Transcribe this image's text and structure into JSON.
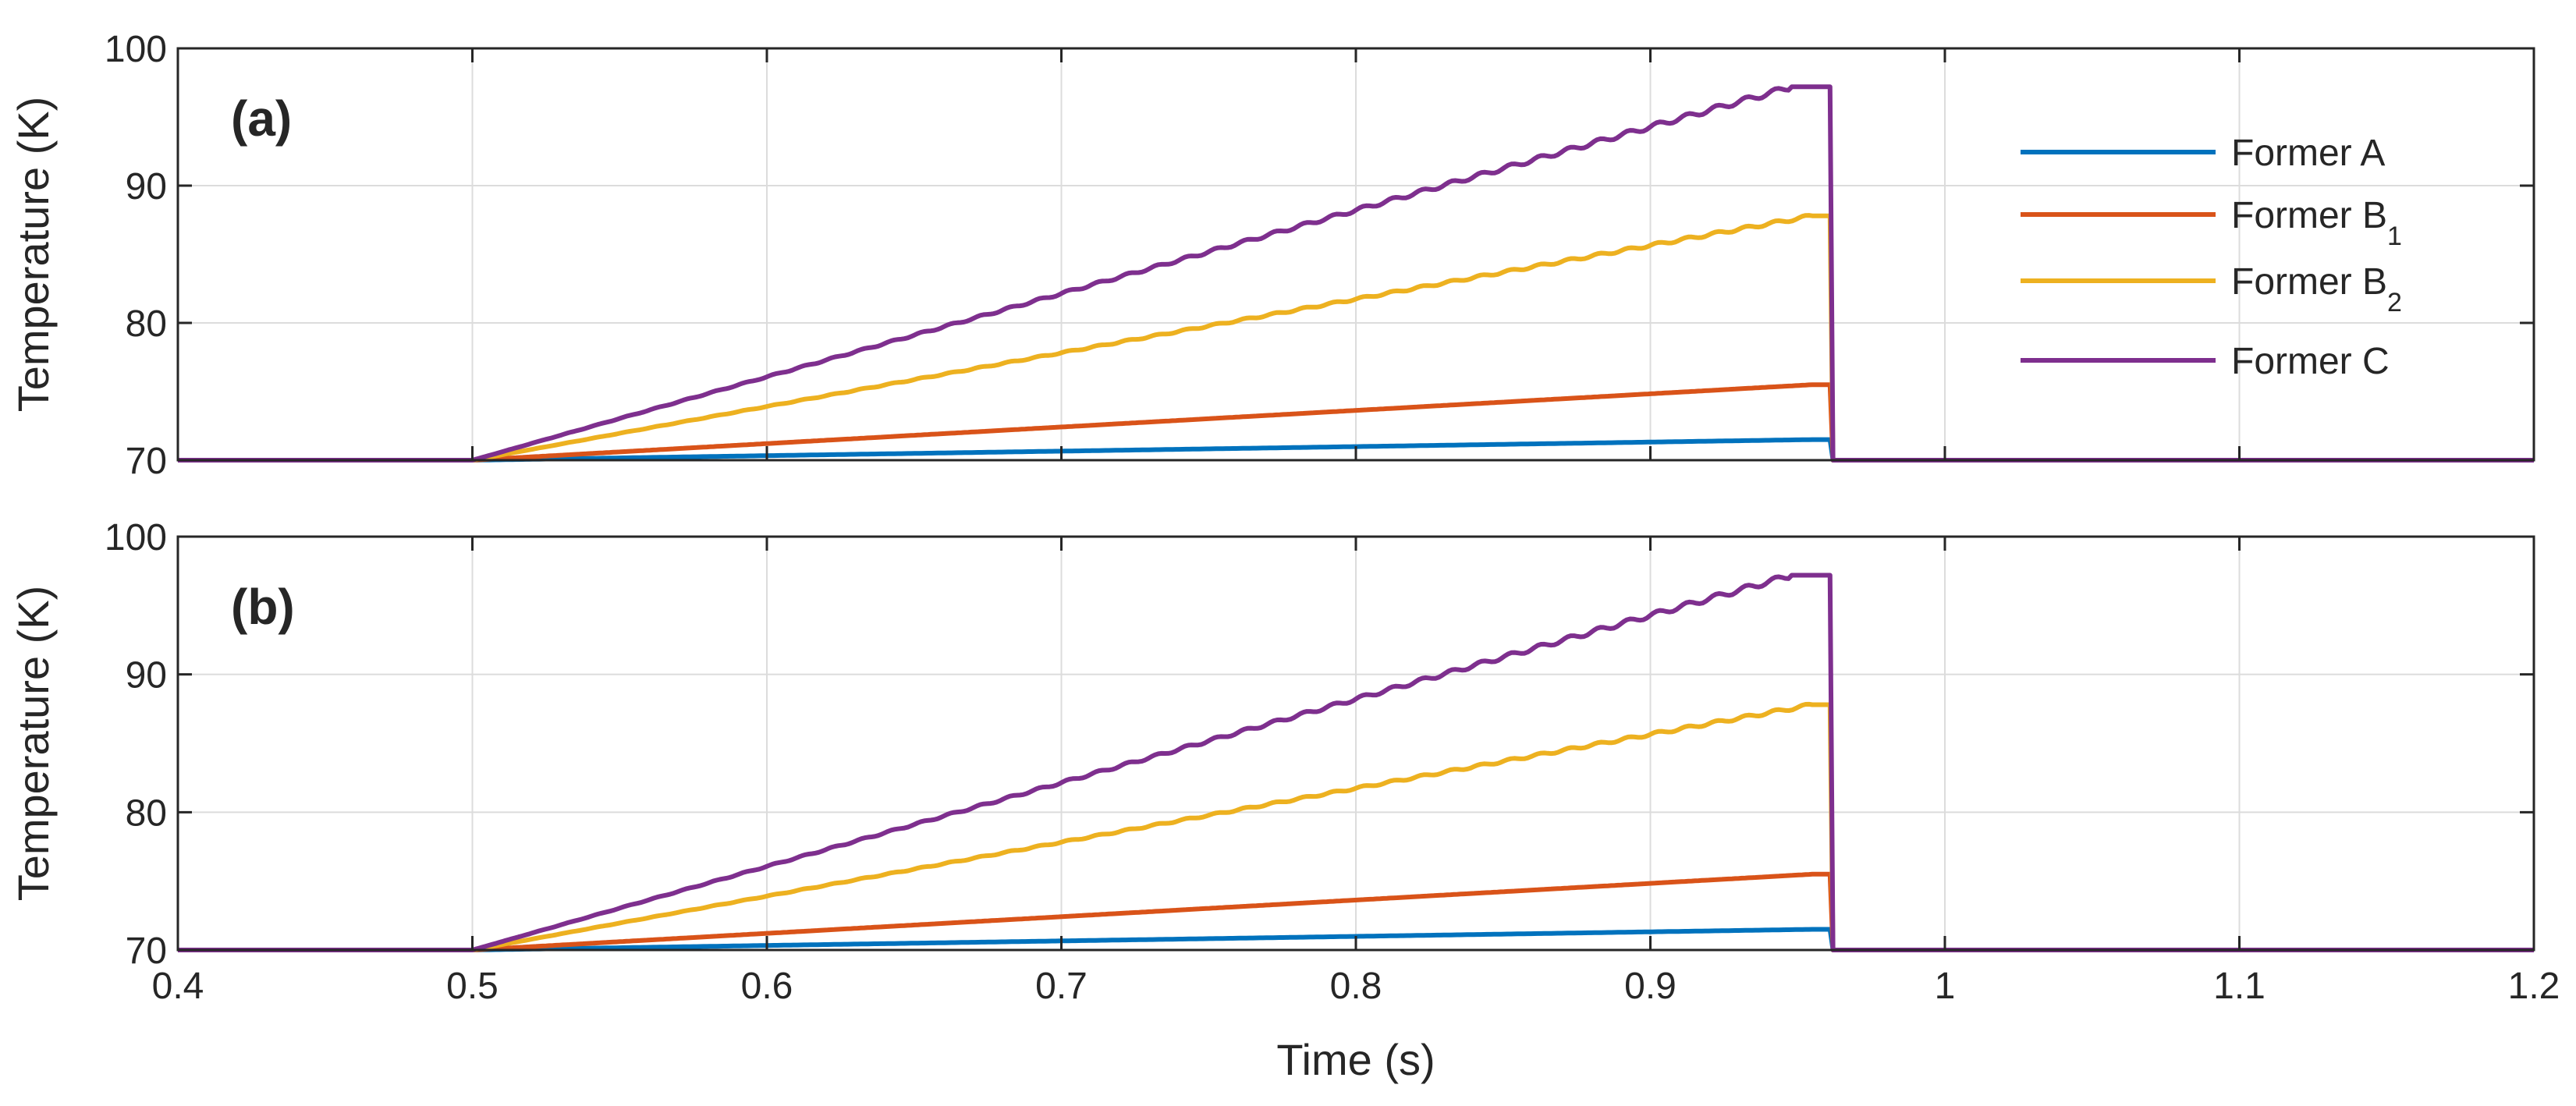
{
  "chart_data": {
    "type": "line",
    "xlabel": "Time (s)",
    "ylabel": "Temperature (K)",
    "xlim": [
      0.4,
      1.2
    ],
    "ylim": [
      70,
      100
    ],
    "xticks": [
      0.4,
      0.5,
      0.6,
      0.7,
      0.8,
      0.9,
      1.0,
      1.1,
      1.2
    ],
    "xtick_labels": [
      "0.4",
      "0.5",
      "0.6",
      "0.7",
      "0.8",
      "0.9",
      "1",
      "1.1",
      "1.2"
    ],
    "yticks": [
      70,
      80,
      90,
      100
    ],
    "ytick_labels": [
      "70",
      "80",
      "90",
      "100"
    ],
    "grid": true,
    "legend_position": "top-right (panel a)",
    "panels": [
      {
        "label": "(a)",
        "series": [
          {
            "name": "Former A",
            "name_main": "Former A",
            "name_sub": "",
            "color": "#0072BD",
            "ripple": 0,
            "x": [
              0.4,
              0.5,
              0.955,
              0.961,
              0.962,
              1.2
            ],
            "y": [
              70,
              70,
              71.5,
              71.5,
              70,
              70
            ]
          },
          {
            "name": "Former B1",
            "name_main": "Former B",
            "name_sub": "1",
            "color": "#D95319",
            "ripple": 0,
            "x": [
              0.4,
              0.5,
              0.955,
              0.961,
              0.962,
              1.2
            ],
            "y": [
              70,
              70,
              75.5,
              75.5,
              70,
              70
            ]
          },
          {
            "name": "Former B2",
            "name_main": "Former B",
            "name_sub": "2",
            "color": "#EDB120",
            "ripple": 0.12,
            "x": [
              0.4,
              0.5,
              0.955,
              0.961,
              0.962,
              1.2
            ],
            "y": [
              70,
              70,
              87.8,
              87.8,
              70,
              70
            ]
          },
          {
            "name": "Former C",
            "name_main": "Former C",
            "name_sub": "",
            "color": "#7E2F8E",
            "ripple": 0.2,
            "x": [
              0.4,
              0.5,
              0.948,
              0.961,
              0.962,
              1.2
            ],
            "y": [
              70,
              70,
              97.2,
              97.2,
              70,
              70
            ]
          }
        ]
      },
      {
        "label": "(b)",
        "series": [
          {
            "name": "Former A",
            "color": "#0072BD",
            "ripple": 0,
            "x": [
              0.4,
              0.5,
              0.955,
              0.961,
              0.962,
              1.2
            ],
            "y": [
              70,
              70,
              71.5,
              71.5,
              70,
              70
            ]
          },
          {
            "name": "Former B1",
            "color": "#D95319",
            "ripple": 0,
            "x": [
              0.4,
              0.5,
              0.955,
              0.961,
              0.962,
              1.2
            ],
            "y": [
              70,
              70,
              75.5,
              75.5,
              70,
              70
            ]
          },
          {
            "name": "Former B2",
            "color": "#EDB120",
            "ripple": 0.12,
            "x": [
              0.4,
              0.5,
              0.955,
              0.961,
              0.962,
              1.2
            ],
            "y": [
              70,
              70,
              87.8,
              87.8,
              70,
              70
            ]
          },
          {
            "name": "Former C",
            "color": "#7E2F8E",
            "ripple": 0.2,
            "x": [
              0.4,
              0.5,
              0.948,
              0.961,
              0.962,
              1.2
            ],
            "y": [
              70,
              70,
              97.2,
              97.2,
              70,
              70
            ]
          }
        ]
      }
    ]
  }
}
